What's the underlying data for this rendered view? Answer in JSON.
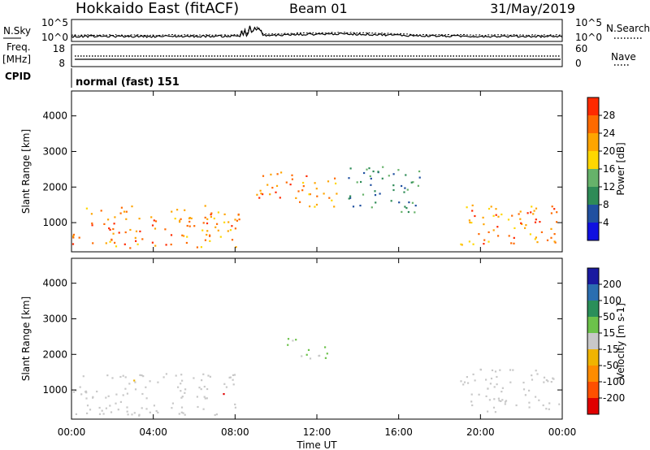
{
  "header": {
    "station": "Hokkaido East (fitACF)",
    "beam": "Beam 01",
    "date": "31/May/2019"
  },
  "noise_panel": {
    "left_label": "N.Sky",
    "right_label": "N.Search",
    "left_ticks": [
      "10^5",
      "10^0"
    ],
    "right_ticks": [
      "10^5",
      "10^0"
    ]
  },
  "freq_panel": {
    "freq_label": "Freq.",
    "unit_label": "[MHz]",
    "right_label": "Nave",
    "left_ticks": [
      "18",
      "8"
    ],
    "right_ticks": [
      "60",
      "0"
    ]
  },
  "cpid": {
    "label": "CPID",
    "value": "normal (fast) 151"
  },
  "colors": {
    "power": [
      "#1010e0",
      "#2050a0",
      "#2e8b57",
      "#66b26a",
      "#ffd700",
      "#ffa500",
      "#ff6a00",
      "#ff2a00"
    ],
    "velocity": [
      "#1a1aa0",
      "#2b6eb0",
      "#2a8f5a",
      "#6cc24a",
      "#c8c8c8",
      "#f0b400",
      "#ff8c00",
      "#ff5000",
      "#e00000"
    ]
  },
  "chart_data": [
    {
      "type": "heatmap",
      "quantity": "Power",
      "ylabel": "Slant Range [km]",
      "xlabel": "Time UT",
      "x_ticks": [
        "00:00",
        "04:00",
        "08:00",
        "12:00",
        "16:00",
        "20:00",
        "00:00"
      ],
      "y_ticks": [
        "1000",
        "2000",
        "3000",
        "4000"
      ],
      "ylim": [
        180,
        4700
      ],
      "colorbar": {
        "label": "Power [dB]",
        "ticks": [
          "4",
          "8",
          "12",
          "16",
          "20",
          "24",
          "28"
        ],
        "range": [
          0,
          32
        ]
      },
      "echo_regions": [
        {
          "t": [
            0.0,
            8.2
          ],
          "r": [
            300,
            1500
          ],
          "level": 24
        },
        {
          "t": [
            9.0,
            11.5
          ],
          "r": [
            1700,
            2500
          ],
          "level": 26
        },
        {
          "t": [
            11.0,
            13.0
          ],
          "r": [
            1400,
            2300
          ],
          "level": 22
        },
        {
          "t": [
            13.5,
            17.0
          ],
          "r": [
            1300,
            2600
          ],
          "level": 10
        },
        {
          "t": [
            19.0,
            24.0
          ],
          "r": [
            400,
            1600
          ],
          "level": 24
        }
      ]
    },
    {
      "type": "heatmap",
      "quantity": "Velocity",
      "ylabel": "Slant Range [km]",
      "xlabel": "Time UT",
      "x_ticks": [
        "00:00",
        "04:00",
        "08:00",
        "12:00",
        "16:00",
        "20:00",
        "00:00"
      ],
      "y_ticks": [
        "1000",
        "2000",
        "3000",
        "4000"
      ],
      "ylim": [
        180,
        4700
      ],
      "colorbar": {
        "label": "Velocity [m s-1]",
        "ticks": [
          "200",
          "100",
          "50",
          "15",
          "-15",
          "-50",
          "-100",
          "-200"
        ],
        "range": [
          -250,
          250
        ]
      },
      "echo_regions": [
        {
          "t": [
            0.0,
            8.2
          ],
          "r": [
            300,
            1500
          ],
          "level": 0
        },
        {
          "t": [
            10.5,
            12.5
          ],
          "r": [
            1900,
            2500
          ],
          "level": 40
        },
        {
          "t": [
            19.0,
            24.0
          ],
          "r": [
            400,
            1600
          ],
          "level": 0
        }
      ]
    }
  ],
  "x_axis": {
    "ticks": [
      "00:00",
      "04:00",
      "08:00",
      "12:00",
      "16:00",
      "20:00",
      "00:00"
    ],
    "label": "Time UT"
  }
}
